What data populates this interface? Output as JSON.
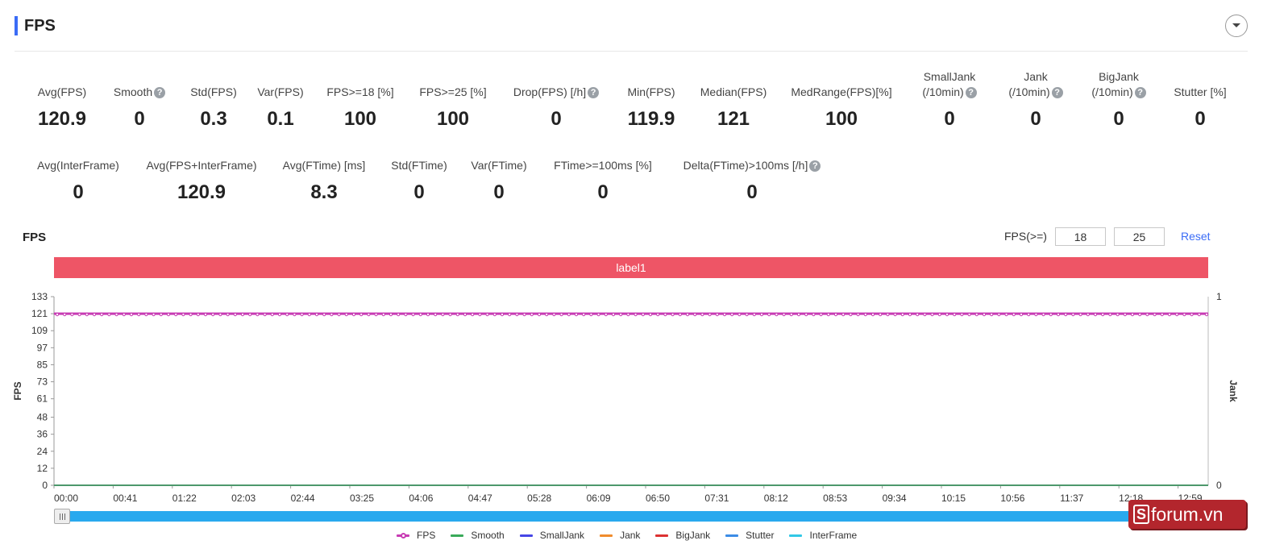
{
  "header": {
    "title": "FPS"
  },
  "stats_row1": [
    {
      "label": "Avg(FPS)",
      "value": "120.9",
      "help": false
    },
    {
      "label": "Smooth",
      "value": "0",
      "help": true
    },
    {
      "label": "Std(FPS)",
      "value": "0.3",
      "help": false
    },
    {
      "label": "Var(FPS)",
      "value": "0.1",
      "help": false
    },
    {
      "label": "FPS>=18 [%]",
      "value": "100",
      "help": false
    },
    {
      "label": "FPS>=25 [%]",
      "value": "100",
      "help": false
    },
    {
      "label": "Drop(FPS) [/h]",
      "value": "0",
      "help": true
    },
    {
      "label": "Min(FPS)",
      "value": "119.9",
      "help": false
    },
    {
      "label": "Median(FPS)",
      "value": "121",
      "help": false
    },
    {
      "label": "MedRange(FPS)[%]",
      "value": "100",
      "help": false
    },
    {
      "label": "SmallJank",
      "label2": "(/10min)",
      "value": "0",
      "help": true
    },
    {
      "label": "Jank",
      "label2": "(/10min)",
      "value": "0",
      "help": true
    },
    {
      "label": "BigJank",
      "label2": "(/10min)",
      "value": "0",
      "help": true
    },
    {
      "label": "Stutter [%]",
      "value": "0",
      "help": false
    }
  ],
  "stats_row2": [
    {
      "label": "Avg(InterFrame)",
      "value": "0",
      "help": false
    },
    {
      "label": "Avg(FPS+InterFrame)",
      "value": "120.9",
      "help": false
    },
    {
      "label": "Avg(FTime) [ms]",
      "value": "8.3",
      "help": false
    },
    {
      "label": "Std(FTime)",
      "value": "0",
      "help": false
    },
    {
      "label": "Var(FTime)",
      "value": "0",
      "help": false
    },
    {
      "label": "FTime>=100ms [%]",
      "value": "0",
      "help": false
    },
    {
      "label": "Delta(FTime)>100ms [/h]",
      "value": "0",
      "help": true
    }
  ],
  "help_glyph": "?",
  "chart_section": {
    "title": "FPS",
    "threshold_label": "FPS(>=)",
    "threshold_1": "18",
    "threshold_2": "25",
    "reset_label": "Reset",
    "band_label": "label1",
    "slider_grip": "III"
  },
  "chart_data": {
    "type": "line",
    "ylabel": "FPS",
    "y2label": "Jank",
    "ylim": [
      0,
      133
    ],
    "y_ticks": [
      0,
      12,
      24,
      36,
      48,
      61,
      73,
      85,
      97,
      109,
      121,
      133
    ],
    "y2lim": [
      0,
      1
    ],
    "y2_ticks": [
      0,
      1
    ],
    "x_ticks": [
      "00:00",
      "00:41",
      "01:22",
      "02:03",
      "02:44",
      "03:25",
      "04:06",
      "04:47",
      "05:28",
      "06:09",
      "06:50",
      "07:31",
      "08:12",
      "08:53",
      "09:34",
      "10:15",
      "10:56",
      "11:37",
      "12:18",
      "12:59"
    ],
    "grid": false,
    "legend_position": "bottom",
    "series": [
      {
        "name": "FPS",
        "color": "#c83cb4",
        "constant": 121,
        "marker": true
      },
      {
        "name": "Smooth",
        "color": "#3aaa5a",
        "constant": 0
      },
      {
        "name": "SmallJank",
        "color": "#4646e6",
        "constant": 0
      },
      {
        "name": "Jank",
        "color": "#f08c2d",
        "constant": 0
      },
      {
        "name": "BigJank",
        "color": "#dc3232",
        "constant": 0
      },
      {
        "name": "Stutter",
        "color": "#3c8ce6",
        "constant": 0
      },
      {
        "name": "InterFrame",
        "color": "#32c8e6",
        "constant": 0
      }
    ]
  },
  "watermark": {
    "logo": "S",
    "text": "forum.vn"
  }
}
